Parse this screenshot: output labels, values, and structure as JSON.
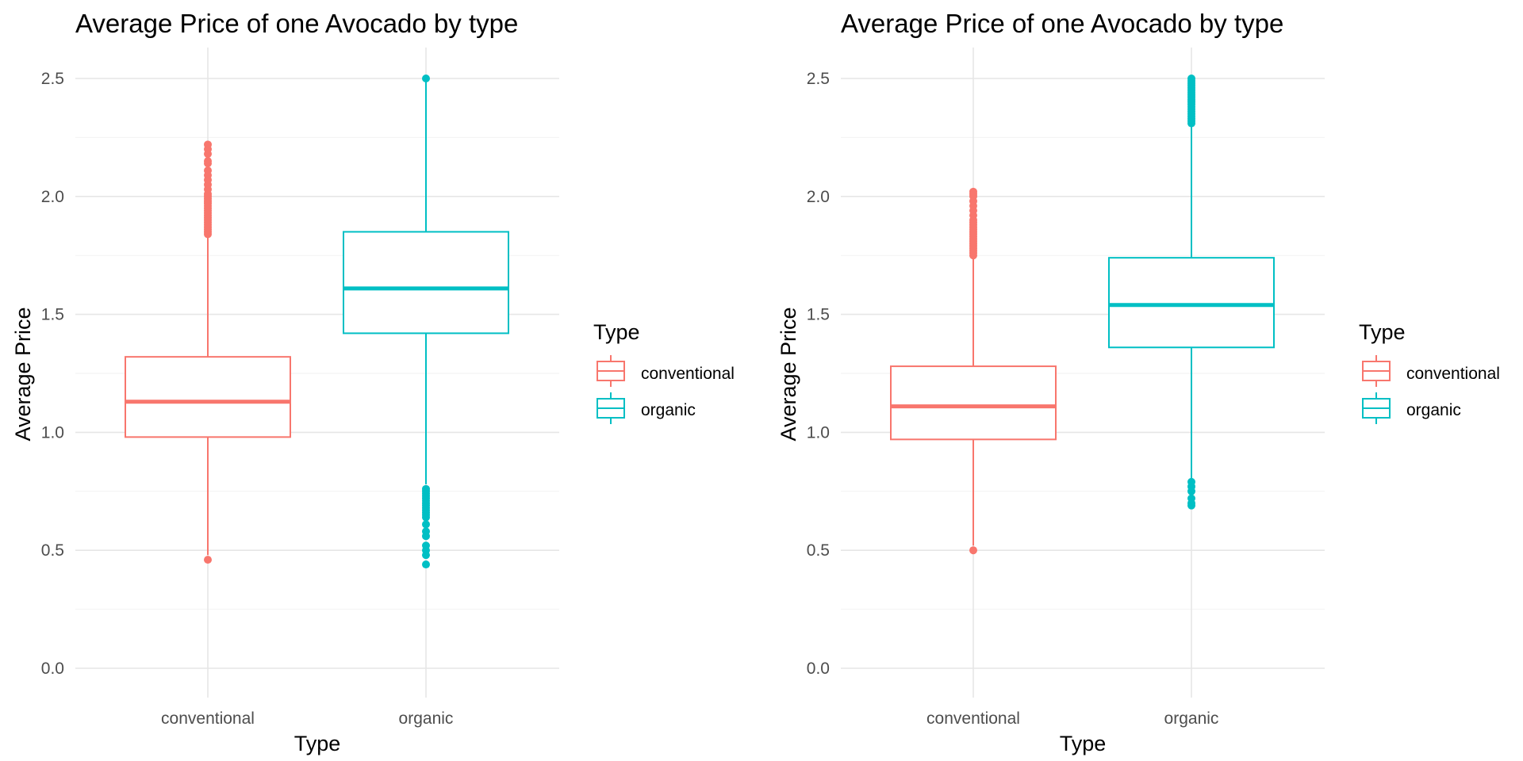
{
  "colors": {
    "conventional": "#F8766D",
    "organic": "#00BFC4",
    "grid": "#e6e6e6",
    "tick_text": "#4d4d4d"
  },
  "chart_data": [
    {
      "type": "box",
      "title": "Average Price of one Avocado by type",
      "xlabel": "Type",
      "ylabel": "Average Price",
      "ylim": [
        0,
        2.6
      ],
      "yticks": [
        0.0,
        0.5,
        1.0,
        1.5,
        2.0,
        2.5
      ],
      "ytick_labels": [
        "0.0",
        "0.5",
        "1.0",
        "1.5",
        "2.0",
        "2.5"
      ],
      "grid": true,
      "legend": {
        "title": "Type",
        "placement": "right",
        "entries": [
          "conventional",
          "organic"
        ]
      },
      "categories": [
        "conventional",
        "organic"
      ],
      "series": [
        {
          "category": "conventional",
          "q1": 0.98,
          "median": 1.13,
          "q3": 1.32,
          "whisker_low": 0.48,
          "whisker_high": 1.83,
          "outliers": [
            0.46,
            1.84,
            1.85,
            1.86,
            1.87,
            1.88,
            1.89,
            1.9,
            1.91,
            1.92,
            1.93,
            1.94,
            1.95,
            1.96,
            1.97,
            1.98,
            1.99,
            2.0,
            2.01,
            2.03,
            2.05,
            2.07,
            2.09,
            2.11,
            2.14,
            2.15,
            2.18,
            2.2,
            2.22
          ]
        },
        {
          "category": "organic",
          "q1": 1.42,
          "median": 1.61,
          "q3": 1.85,
          "whisker_low": 0.78,
          "whisker_high": 2.49,
          "outliers": [
            0.44,
            0.48,
            0.5,
            0.52,
            0.56,
            0.58,
            0.61,
            0.64,
            0.65,
            0.66,
            0.67,
            0.68,
            0.69,
            0.7,
            0.71,
            0.72,
            0.73,
            0.74,
            0.75,
            0.76,
            2.5
          ]
        }
      ]
    },
    {
      "type": "box",
      "title": "Average Price of one Avocado by type",
      "xlabel": "Type",
      "ylabel": "Average Price",
      "ylim": [
        0,
        2.6
      ],
      "yticks": [
        0.0,
        0.5,
        1.0,
        1.5,
        2.0,
        2.5
      ],
      "ytick_labels": [
        "0.0",
        "0.5",
        "1.0",
        "1.5",
        "2.0",
        "2.5"
      ],
      "grid": true,
      "legend": {
        "title": "Type",
        "placement": "right",
        "entries": [
          "conventional",
          "organic"
        ]
      },
      "categories": [
        "conventional",
        "organic"
      ],
      "series": [
        {
          "category": "conventional",
          "q1": 0.97,
          "median": 1.11,
          "q3": 1.28,
          "whisker_low": 0.52,
          "whisker_high": 1.74,
          "outliers": [
            0.5,
            1.75,
            1.76,
            1.77,
            1.78,
            1.79,
            1.8,
            1.81,
            1.82,
            1.83,
            1.84,
            1.85,
            1.86,
            1.87,
            1.88,
            1.89,
            1.9,
            1.92,
            1.94,
            1.96,
            1.98,
            2.0,
            2.01,
            2.02
          ]
        },
        {
          "category": "organic",
          "q1": 1.36,
          "median": 1.54,
          "q3": 1.74,
          "whisker_low": 0.8,
          "whisker_high": 2.3,
          "outliers": [
            0.69,
            0.7,
            0.72,
            0.75,
            0.77,
            0.79,
            2.31,
            2.32,
            2.33,
            2.34,
            2.35,
            2.36,
            2.37,
            2.38,
            2.39,
            2.4,
            2.41,
            2.42,
            2.43,
            2.44,
            2.45,
            2.46,
            2.47,
            2.48,
            2.49,
            2.5
          ]
        }
      ]
    }
  ]
}
